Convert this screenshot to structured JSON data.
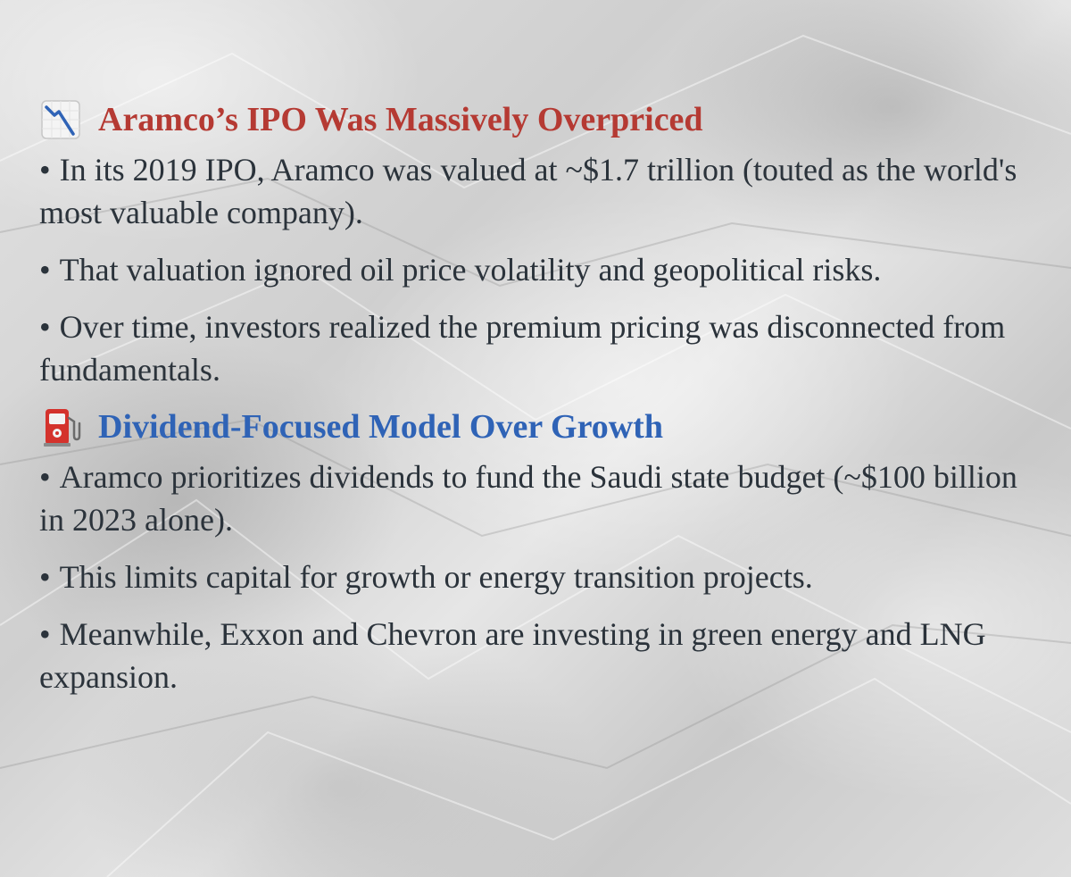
{
  "sections": [
    {
      "icon": "chart-decreasing-icon",
      "heading": "Aramco’s IPO Was Massively Overpriced",
      "bullets": [
        "In its 2019 IPO, Aramco was valued at ~$1.7 trillion (touted as the world's most valuable company).",
        "That valuation ignored oil price volatility and geopolitical risks.",
        "Over time, investors realized the premium pricing was disconnected from fundamentals."
      ]
    },
    {
      "icon": "fuel-pump-icon",
      "heading": "Dividend-Focused Model Over Growth",
      "bullets": [
        "Aramco prioritizes dividends to fund the Saudi state budget (~$100 billion in 2023 alone).",
        "This limits capital for growth or energy transition projects.",
        "Meanwhile, Exxon and Chevron are investing in green energy and LNG expansion."
      ]
    }
  ],
  "bullet_symbol": "•",
  "colors": {
    "heading_red": "#b53a33",
    "heading_blue": "#2f63b6",
    "body_text": "#2b333b"
  }
}
